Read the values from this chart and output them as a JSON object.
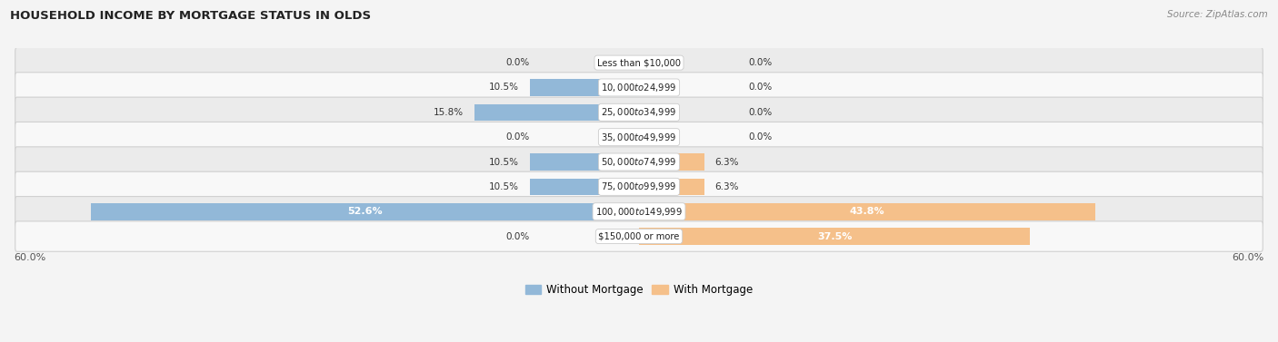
{
  "title": "HOUSEHOLD INCOME BY MORTGAGE STATUS IN OLDS",
  "source": "Source: ZipAtlas.com",
  "categories": [
    "Less than $10,000",
    "$10,000 to $24,999",
    "$25,000 to $34,999",
    "$35,000 to $49,999",
    "$50,000 to $74,999",
    "$75,000 to $99,999",
    "$100,000 to $149,999",
    "$150,000 or more"
  ],
  "without_mortgage": [
    0.0,
    10.5,
    15.8,
    0.0,
    10.5,
    10.5,
    52.6,
    0.0
  ],
  "with_mortgage": [
    0.0,
    0.0,
    0.0,
    0.0,
    6.3,
    6.3,
    43.8,
    37.5
  ],
  "color_without": "#92b8d8",
  "color_with": "#f5c08a",
  "axis_limit": 60.0,
  "min_bar_show": 2.0,
  "legend_without": "Without Mortgage",
  "legend_with": "With Mortgage",
  "bg_light": "#ebebeb",
  "bg_white": "#f8f8f8",
  "row_border": "#d0d0d0",
  "fig_bg": "#f4f4f4"
}
